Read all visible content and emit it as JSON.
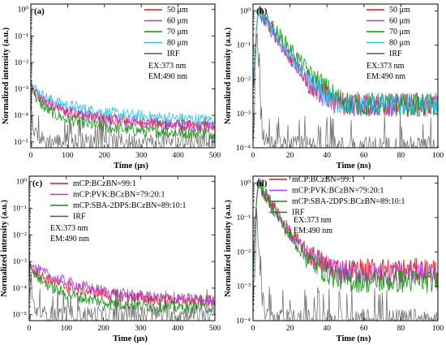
{
  "chart_data": [
    {
      "panel": "(a)",
      "type": "line",
      "yscale": "log",
      "xlabel": "Time (μs)",
      "ylabel": "Normalized intensity (a.u.)",
      "xlim": [
        0,
        500
      ],
      "ylim": [
        6e-06,
        1.6
      ],
      "xticks": [
        0,
        100,
        200,
        300,
        400,
        500
      ],
      "ytick_labels": [
        "10⁰",
        "10⁻¹",
        "10⁻²",
        "10⁻³",
        "10⁻⁴",
        "10⁻⁵"
      ],
      "annotations": [
        "EX:373 nm",
        "EM:490 nm"
      ],
      "legend_position": "top-right",
      "series": [
        {
          "name": "50 μm",
          "color": "#e8141c",
          "x": [
            0,
            5,
            10,
            20,
            40,
            70,
            100,
            150,
            200,
            250,
            300,
            350,
            400,
            450,
            500
          ],
          "y": [
            0.002,
            0.0011,
            0.0008,
            0.00055,
            0.00032,
            0.0002,
            0.00014,
            0.0001,
            8e-05,
            6.5e-05,
            5.5e-05,
            4.8e-05,
            4.3e-05,
            4e-05,
            3.7e-05
          ]
        },
        {
          "name": "60 μm",
          "color": "#b03ad6",
          "x": [
            0,
            5,
            10,
            20,
            40,
            70,
            100,
            150,
            200,
            250,
            300,
            350,
            400,
            450,
            500
          ],
          "y": [
            0.002,
            0.0011,
            0.0008,
            0.00055,
            0.00032,
            0.0002,
            0.00014,
            0.0001,
            8e-05,
            6.5e-05,
            5.5e-05,
            4.8e-05,
            4.3e-05,
            4e-05,
            3.7e-05
          ]
        },
        {
          "name": "70 μm",
          "color": "#149114",
          "x": [
            0,
            5,
            10,
            20,
            40,
            70,
            100,
            150,
            200,
            250,
            300,
            350,
            400,
            450,
            500
          ],
          "y": [
            0.0018,
            0.0009,
            0.0006,
            0.00035,
            0.00018,
            0.0001,
            7e-05,
            4.8e-05,
            3.6e-05,
            3e-05,
            2.6e-05,
            2.4e-05,
            2.2e-05,
            2.1e-05,
            2e-05
          ]
        },
        {
          "name": "80 μm",
          "color": "#29c3ec",
          "x": [
            0,
            5,
            10,
            20,
            40,
            70,
            100,
            150,
            200,
            250,
            300,
            350,
            400,
            450,
            500
          ],
          "y": [
            0.0025,
            0.0015,
            0.0011,
            0.00075,
            0.00048,
            0.00032,
            0.00024,
            0.00017,
            0.00013,
            0.00011,
            9.5e-05,
            8.5e-05,
            7.8e-05,
            7.2e-05,
            6.8e-05
          ]
        },
        {
          "name": "IRF",
          "color": "#555555",
          "x": [
            0,
            2,
            5,
            10,
            20,
            40,
            500
          ],
          "y": [
            0.004,
            0.0003,
            8e-05,
            3e-05,
            1.5e-05,
            1e-05,
            1e-05
          ]
        }
      ]
    },
    {
      "panel": "(b)",
      "type": "line",
      "yscale": "log",
      "xlabel": "Time (ns)",
      "ylabel": "Normalized intensity (a.u.)",
      "xlim": [
        0,
        100
      ],
      "ylim": [
        0.0001,
        1.6
      ],
      "xticks": [
        0,
        20,
        40,
        60,
        80,
        100
      ],
      "ytick_labels": [
        "10⁰",
        "10⁻¹",
        "10⁻²",
        "10⁻³",
        "10⁻⁴"
      ],
      "annotations": [
        "EX:373 nm",
        "EM:490 nm"
      ],
      "legend_position": "top-right",
      "series": [
        {
          "name": "50 μm",
          "color": "#e8141c",
          "x": [
            0,
            2,
            3,
            10,
            20,
            30,
            40,
            45,
            50,
            60,
            80,
            100
          ],
          "y": [
            0.004,
            0.4,
            1.0,
            0.3,
            0.045,
            0.009,
            0.003,
            0.0022,
            0.0019,
            0.0018,
            0.0018,
            0.0018
          ]
        },
        {
          "name": "60 μm",
          "color": "#b03ad6",
          "x": [
            0,
            2,
            3,
            10,
            20,
            30,
            40,
            45,
            50,
            60,
            80,
            100
          ],
          "y": [
            0.004,
            0.4,
            1.0,
            0.28,
            0.04,
            0.008,
            0.0028,
            0.0021,
            0.0019,
            0.0018,
            0.0018,
            0.0018
          ]
        },
        {
          "name": "70 μm",
          "color": "#149114",
          "x": [
            0,
            2,
            3,
            10,
            20,
            30,
            40,
            45,
            50,
            60,
            80,
            100
          ],
          "y": [
            0.004,
            0.4,
            1.0,
            0.38,
            0.08,
            0.018,
            0.005,
            0.003,
            0.0022,
            0.0019,
            0.0018,
            0.0018
          ]
        },
        {
          "name": "80 μm",
          "color": "#29c3ec",
          "x": [
            0,
            2,
            3,
            10,
            20,
            30,
            40,
            45,
            50,
            60,
            80,
            100
          ],
          "y": [
            0.004,
            0.4,
            1.0,
            0.3,
            0.045,
            0.009,
            0.003,
            0.0022,
            0.0019,
            0.0018,
            0.0018,
            0.0018
          ]
        },
        {
          "name": "IRF",
          "color": "#555555",
          "x": [
            0,
            1,
            2,
            3,
            4,
            5,
            6,
            8,
            10,
            100
          ],
          "y": [
            0.0001,
            0.002,
            0.3,
            0.02,
            0.002,
            0.0004,
            0.0002,
            0.00015,
            0.0001,
            0.0001
          ]
        }
      ]
    },
    {
      "panel": "(c)",
      "type": "line",
      "yscale": "log",
      "xlabel": "Time (μs)",
      "ylabel": "Normalized intensity (a.u.)",
      "xlim": [
        0,
        500
      ],
      "ylim": [
        6e-06,
        1.6
      ],
      "xticks": [
        0,
        100,
        200,
        300,
        400,
        500
      ],
      "ytick_labels": [
        "10⁰",
        "10⁻¹",
        "10⁻²",
        "10⁻³",
        "10⁻⁴",
        "10⁻⁵"
      ],
      "annotations": [
        "EX:373 nm",
        "EM:490 nm"
      ],
      "legend_position": "top-left",
      "series": [
        {
          "name": "mCP:BCzBN=99:1",
          "color": "#e8141c",
          "x": [
            0,
            5,
            10,
            20,
            40,
            70,
            100,
            150,
            200,
            250,
            300,
            350,
            400,
            450,
            500
          ],
          "y": [
            0.0009,
            0.00065,
            0.0005,
            0.00038,
            0.00025,
            0.00016,
            0.00011,
            8e-05,
            6e-05,
            5e-05,
            4.3e-05,
            3.8e-05,
            3.5e-05,
            3.3e-05,
            3.2e-05
          ]
        },
        {
          "name": "mCP:PVK:BCzBN=79:20:1",
          "color": "#b03ad6",
          "x": [
            0,
            5,
            10,
            20,
            40,
            70,
            100,
            150,
            200,
            250,
            300,
            350,
            400,
            450,
            500
          ],
          "y": [
            0.001,
            0.0008,
            0.00065,
            0.0005,
            0.00036,
            0.00024,
            0.00017,
            0.00011,
            7.8e-05,
            6e-05,
            5e-05,
            4.4e-05,
            4e-05,
            3.7e-05,
            3.5e-05
          ]
        },
        {
          "name": "mCP:SBA-2DPS:BCzBN=89:10:1",
          "color": "#149114",
          "x": [
            0,
            5,
            10,
            20,
            40,
            70,
            100,
            150,
            200,
            250,
            300,
            350,
            400,
            450,
            500
          ],
          "y": [
            0.0009,
            0.00055,
            0.0004,
            0.00028,
            0.00016,
            9e-05,
            6e-05,
            4e-05,
            3e-05,
            2.5e-05,
            2.2e-05,
            2e-05,
            1.9e-05,
            1.8e-05,
            1.8e-05
          ]
        },
        {
          "name": "IRF",
          "color": "#555555",
          "x": [
            0,
            2,
            5,
            10,
            20,
            40,
            500
          ],
          "y": [
            0.002,
            0.0002,
            6e-05,
            2.5e-05,
            1.4e-05,
            1e-05,
            1e-05
          ]
        }
      ]
    },
    {
      "panel": "(d)",
      "type": "line",
      "yscale": "log",
      "xlabel": "Time (ns)",
      "ylabel": "Normalized intensity (a.u.)",
      "xlim": [
        0,
        100
      ],
      "ylim": [
        0.0001,
        1.6
      ],
      "xticks": [
        0,
        20,
        40,
        60,
        80,
        100
      ],
      "ytick_labels": [
        "10⁰",
        "10⁻¹",
        "10⁻²",
        "10⁻³",
        "10⁻⁴"
      ],
      "annotations": [
        "EX:373 nm",
        "EM:490 nm"
      ],
      "legend_position": "top-right",
      "series": [
        {
          "name": "mCP:BCzBN=99:1",
          "color": "#e8141c",
          "x": [
            0,
            2,
            3,
            10,
            20,
            30,
            40,
            45,
            50,
            60,
            80,
            100
          ],
          "y": [
            0.004,
            0.4,
            1.0,
            0.25,
            0.035,
            0.009,
            0.004,
            0.0033,
            0.003,
            0.003,
            0.003,
            0.003
          ]
        },
        {
          "name": "mCP:PVK:BCzBN=79:20:1",
          "color": "#b03ad6",
          "x": [
            0,
            2,
            3,
            10,
            20,
            30,
            40,
            45,
            50,
            60,
            80,
            100
          ],
          "y": [
            0.003,
            0.4,
            1.0,
            0.24,
            0.033,
            0.008,
            0.0035,
            0.0028,
            0.0025,
            0.0024,
            0.0024,
            0.0024
          ]
        },
        {
          "name": "mCP:SBA-2DPS:BCzBN=89:10:1",
          "color": "#149114",
          "x": [
            0,
            2,
            3,
            10,
            20,
            30,
            40,
            45,
            50,
            60,
            80,
            100
          ],
          "y": [
            0.002,
            0.4,
            1.0,
            0.22,
            0.028,
            0.006,
            0.0025,
            0.0018,
            0.0015,
            0.0014,
            0.0014,
            0.0014
          ]
        },
        {
          "name": "IRF",
          "color": "#555555",
          "x": [
            0,
            1,
            2,
            3,
            4,
            5,
            6,
            8,
            10,
            100
          ],
          "y": [
            0.0001,
            0.002,
            0.3,
            0.02,
            0.002,
            0.0004,
            0.0002,
            0.00015,
            0.0001,
            0.0001
          ]
        }
      ]
    }
  ]
}
